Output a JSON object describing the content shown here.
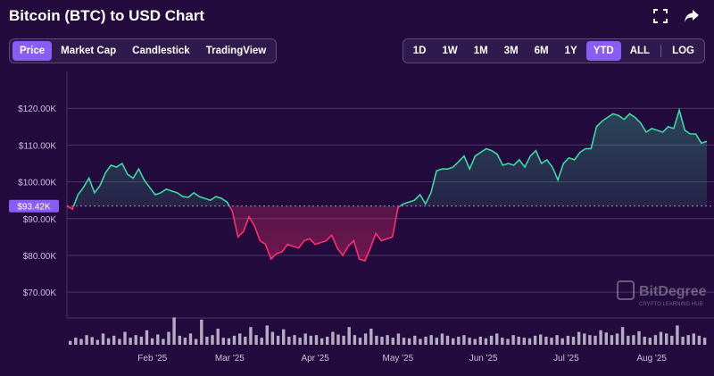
{
  "header": {
    "title": "Bitcoin (BTC) to USD Chart"
  },
  "icons": {
    "expand": "expand-icon",
    "share": "share-arrow-icon"
  },
  "view_tabs": [
    {
      "label": "Price",
      "active": true
    },
    {
      "label": "Market Cap",
      "active": false
    },
    {
      "label": "Candlestick",
      "active": false
    },
    {
      "label": "TradingView",
      "active": false
    }
  ],
  "range_tabs": [
    {
      "label": "1D",
      "active": false
    },
    {
      "label": "1W",
      "active": false
    },
    {
      "label": "1M",
      "active": false
    },
    {
      "label": "3M",
      "active": false
    },
    {
      "label": "6M",
      "active": false
    },
    {
      "label": "1Y",
      "active": false
    },
    {
      "label": "YTD",
      "active": true
    },
    {
      "label": "ALL",
      "active": false
    }
  ],
  "scale_toggle": {
    "label": "LOG"
  },
  "watermark": {
    "brand": "BitDegree",
    "tagline": "CRYPTO LEARNING HUB"
  },
  "colors": {
    "up": "#3dd9a0",
    "down": "#ff2d6f",
    "accent": "#8a5cf6",
    "grid": "#4a3668",
    "volume": "#cfc8dc"
  },
  "chart_data": {
    "type": "area",
    "title": "Bitcoin (BTC) to USD Chart",
    "series_name": "BTC/USD price",
    "baseline_label": "$93.42K",
    "baseline_value": 93.42,
    "unit": "K USD",
    "ylim": [
      63,
      130
    ],
    "xlim": [
      0,
      232
    ],
    "y_ticks": [
      {
        "value": 70,
        "label": "$70.00K"
      },
      {
        "value": 80,
        "label": "$80.00K"
      },
      {
        "value": 90,
        "label": "$90.00K"
      },
      {
        "value": 100,
        "label": "$100.00K"
      },
      {
        "value": 110,
        "label": "$110.00K"
      },
      {
        "value": 120,
        "label": "$120.00K"
      }
    ],
    "x_ticks": [
      {
        "day": 31,
        "label": "Feb '25"
      },
      {
        "day": 59,
        "label": "Mar '25"
      },
      {
        "day": 90,
        "label": "Apr '25"
      },
      {
        "day": 120,
        "label": "May '25"
      },
      {
        "day": 151,
        "label": "Jun '25"
      },
      {
        "day": 181,
        "label": "Jul '25"
      },
      {
        "day": 212,
        "label": "Aug '25"
      }
    ],
    "x": [
      0,
      2,
      4,
      6,
      8,
      10,
      12,
      14,
      16,
      18,
      20,
      22,
      24,
      26,
      28,
      30,
      32,
      34,
      36,
      38,
      40,
      42,
      44,
      46,
      48,
      50,
      52,
      54,
      56,
      58,
      60,
      62,
      64,
      66,
      68,
      70,
      72,
      74,
      76,
      78,
      80,
      82,
      84,
      86,
      88,
      90,
      92,
      94,
      96,
      98,
      100,
      102,
      104,
      106,
      108,
      110,
      112,
      114,
      116,
      118,
      120,
      122,
      124,
      126,
      128,
      130,
      132,
      134,
      136,
      138,
      140,
      142,
      144,
      146,
      148,
      150,
      152,
      154,
      156,
      158,
      160,
      162,
      164,
      166,
      168,
      170,
      172,
      174,
      176,
      178,
      180,
      182,
      184,
      186,
      188,
      190,
      192,
      194,
      196,
      198,
      200,
      202,
      204,
      206,
      208,
      210,
      212,
      214,
      216,
      218,
      220,
      222,
      224,
      226,
      228,
      230,
      232
    ],
    "values": [
      93.4,
      92.6,
      96.5,
      98.5,
      101.0,
      97.0,
      99.0,
      102.5,
      104.5,
      104.0,
      105.0,
      102.0,
      101.0,
      103.5,
      100.5,
      98.5,
      96.5,
      97.0,
      98.0,
      97.5,
      97.0,
      96.0,
      95.8,
      97.0,
      96.0,
      95.5,
      95.0,
      96.0,
      95.5,
      94.5,
      92.0,
      85.0,
      86.5,
      90.5,
      88.0,
      84.0,
      83.0,
      79.0,
      80.5,
      81.0,
      83.0,
      82.5,
      82.0,
      84.0,
      84.5,
      83.0,
      83.5,
      84.0,
      85.5,
      82.0,
      80.0,
      82.5,
      84.0,
      79.0,
      78.5,
      82.0,
      86.0,
      84.0,
      84.5,
      85.0,
      93.0,
      94.0,
      94.5,
      95.0,
      96.5,
      94.0,
      97.0,
      103.0,
      103.5,
      103.5,
      104.0,
      105.5,
      107.0,
      103.5,
      107.0,
      108.0,
      109.0,
      108.5,
      107.5,
      104.5,
      105.0,
      104.5,
      106.0,
      104.0,
      107.0,
      108.5,
      105.0,
      106.0,
      104.0,
      100.5,
      105.0,
      106.5,
      106.0,
      108.0,
      109.0,
      109.0,
      115.0,
      116.5,
      117.5,
      118.5,
      118.0,
      117.0,
      118.5,
      117.5,
      116.0,
      113.5,
      114.5,
      114.0,
      113.5,
      115.0,
      114.5,
      119.5,
      114.0,
      113.0,
      113.0,
      110.5,
      111.0
    ],
    "volume": [
      0.12,
      0.22,
      0.18,
      0.3,
      0.24,
      0.15,
      0.35,
      0.2,
      0.28,
      0.18,
      0.4,
      0.22,
      0.3,
      0.25,
      0.45,
      0.2,
      0.32,
      0.18,
      0.4,
      0.85,
      0.28,
      0.22,
      0.35,
      0.18,
      0.78,
      0.25,
      0.3,
      0.5,
      0.22,
      0.2,
      0.28,
      0.35,
      0.25,
      0.55,
      0.3,
      0.22,
      0.6,
      0.4,
      0.28,
      0.48,
      0.25,
      0.3,
      0.22,
      0.35,
      0.28,
      0.3,
      0.2,
      0.25,
      0.4,
      0.32,
      0.28,
      0.55,
      0.3,
      0.22,
      0.35,
      0.5,
      0.28,
      0.25,
      0.3,
      0.22,
      0.35,
      0.22,
      0.2,
      0.28,
      0.18,
      0.25,
      0.3,
      0.22,
      0.35,
      0.28,
      0.2,
      0.25,
      0.3,
      0.22,
      0.18,
      0.25,
      0.2,
      0.28,
      0.35,
      0.22,
      0.18,
      0.3,
      0.25,
      0.22,
      0.2,
      0.28,
      0.32,
      0.25,
      0.22,
      0.3,
      0.2,
      0.28,
      0.25,
      0.4,
      0.35,
      0.3,
      0.28,
      0.45,
      0.38,
      0.3,
      0.35,
      0.55,
      0.28,
      0.3,
      0.42,
      0.25,
      0.22,
      0.3,
      0.4,
      0.35,
      0.28,
      0.6,
      0.25,
      0.3,
      0.35,
      0.28,
      0.22
    ]
  }
}
